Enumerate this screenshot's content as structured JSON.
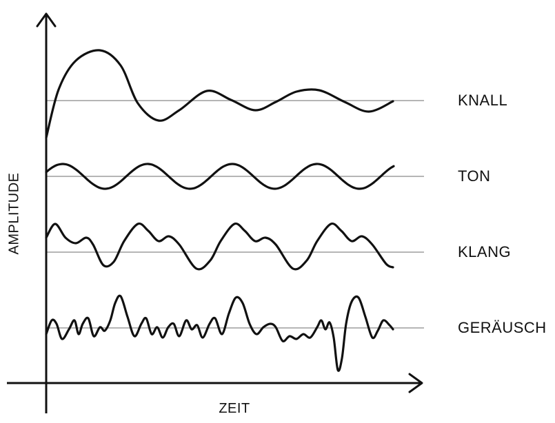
{
  "axes": {
    "x_label": "ZEIT",
    "y_label": "AMPLITUDE"
  },
  "waves": [
    {
      "id": "knall",
      "label": "KNALL"
    },
    {
      "id": "ton",
      "label": "TON"
    },
    {
      "id": "klang",
      "label": "KLANG"
    },
    {
      "id": "geraeusch",
      "label": "GERÄUSCH"
    }
  ],
  "colors": {
    "ink": "#111111",
    "baseline": "#b5b5b5"
  }
}
